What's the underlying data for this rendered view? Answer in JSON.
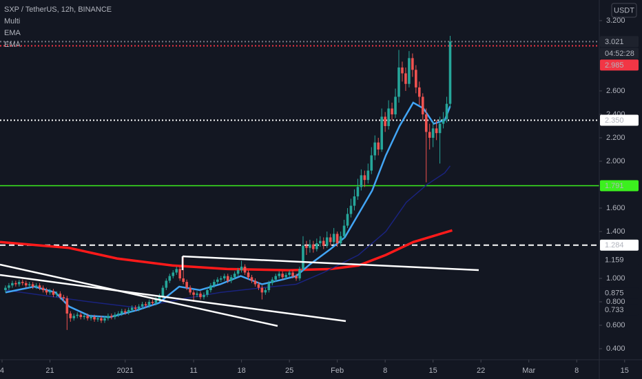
{
  "chart_data": {
    "type": "candlestick",
    "title": "SXP / TetherUS, 12h, BINANCE",
    "indicators": [
      "Multi",
      "EMA",
      "EMA"
    ],
    "currency": "USDT",
    "countdown": "04:52:28",
    "up_color": "#26a69a",
    "down_color": "#ef5350",
    "grid": false,
    "xlim": [
      -0.3,
      87.3
    ],
    "ylim": [
      0.306,
      3.376
    ],
    "xticks": [
      {
        "value": 0,
        "label": "4"
      },
      {
        "value": 7,
        "label": "21"
      },
      {
        "value": 18,
        "label": "2021"
      },
      {
        "value": 28,
        "label": "11"
      },
      {
        "value": 35,
        "label": "18"
      },
      {
        "value": 42,
        "label": "25"
      },
      {
        "value": 49,
        "label": "Feb"
      },
      {
        "value": 56,
        "label": "8"
      },
      {
        "value": 63,
        "label": "15"
      },
      {
        "value": 70,
        "label": "22"
      },
      {
        "value": 77,
        "label": "Mar"
      },
      {
        "value": 84,
        "label": "8"
      },
      {
        "value": 91,
        "label": "15"
      }
    ],
    "yticks": [
      {
        "value": 3.2,
        "label": "3.200"
      },
      {
        "value": 2.6,
        "label": "2.600"
      },
      {
        "value": 2.4,
        "label": "2.400"
      },
      {
        "value": 2.2,
        "label": "2.200"
      },
      {
        "value": 2,
        "label": "2.000"
      },
      {
        "value": 1.6,
        "label": "1.600"
      },
      {
        "value": 1.4,
        "label": "1.400"
      },
      {
        "value": 1,
        "label": "1.000"
      },
      {
        "value": 0.8,
        "label": "0.800"
      },
      {
        "value": 0.6,
        "label": "0.600"
      },
      {
        "value": 0.4,
        "label": "0.400"
      }
    ],
    "x": [
      0.5,
      1,
      1.5,
      2,
      2.5,
      3,
      3.5,
      4,
      4.5,
      5,
      5.5,
      6,
      6.5,
      7,
      7.5,
      8,
      8.5,
      9,
      9.5,
      10,
      10.5,
      11,
      11.5,
      12,
      12.5,
      13,
      13.5,
      14,
      14.5,
      15,
      15.5,
      16,
      16.5,
      17,
      17.5,
      18,
      18.5,
      19,
      19.5,
      20,
      20.5,
      21,
      21.5,
      22,
      22.5,
      23,
      23.5,
      24,
      24.5,
      25,
      25.5,
      26,
      26.5,
      27,
      27.5,
      28,
      28.5,
      29,
      29.5,
      30,
      30.5,
      31,
      31.5,
      32,
      32.5,
      33,
      33.5,
      34,
      34.5,
      35,
      35.5,
      36,
      36.5,
      37,
      37.5,
      38,
      38.5,
      39,
      39.5,
      40,
      40.5,
      41,
      41.5,
      42,
      42.5,
      43,
      43.5,
      44,
      44.5,
      45,
      45.5,
      46,
      46.5,
      47,
      47.5,
      48,
      48.5,
      49,
      49.5,
      50,
      50.5,
      51,
      51.5,
      52,
      52.5,
      53,
      53.5,
      54,
      54.5,
      55,
      55.5,
      56,
      56.5,
      57,
      57.5,
      58,
      58.5,
      59,
      59.5,
      60,
      60.5,
      61,
      61.5,
      62,
      62.5,
      63,
      63.5,
      64,
      64.5,
      65,
      65.5
    ],
    "open": [
      0.9,
      0.92,
      0.94,
      0.96,
      0.95,
      0.97,
      0.96,
      0.94,
      0.95,
      0.93,
      0.94,
      0.92,
      0.9,
      0.88,
      0.89,
      0.86,
      0.87,
      0.84,
      0.83,
      0.7,
      0.66,
      0.68,
      0.69,
      0.67,
      0.68,
      0.66,
      0.67,
      0.65,
      0.66,
      0.64,
      0.66,
      0.68,
      0.67,
      0.69,
      0.7,
      0.72,
      0.71,
      0.73,
      0.75,
      0.74,
      0.76,
      0.78,
      0.77,
      0.8,
      0.79,
      0.82,
      0.85,
      0.92,
      0.98,
      1.02,
      1.05,
      1.08,
      1.0,
      0.97,
      0.92,
      0.88,
      0.86,
      0.87,
      0.84,
      0.86,
      0.9,
      0.94,
      0.97,
      0.99,
      1.0,
      1.02,
      0.98,
      1.01,
      1.04,
      1.07,
      1.1,
      1.05,
      1.01,
      0.98,
      0.95,
      0.92,
      0.88,
      0.9,
      0.96,
      0.99,
      1.02,
      1.04,
      1.01,
      1.03,
      1.05,
      1.02,
      1.0,
      1.08,
      1.28,
      1.26,
      1.29,
      1.25,
      1.3,
      1.32,
      1.28,
      1.35,
      1.31,
      1.38,
      1.3,
      1.36,
      1.45,
      1.55,
      1.62,
      1.7,
      1.78,
      1.88,
      1.84,
      1.92,
      2.05,
      2.16,
      2.1,
      2.38,
      2.3,
      2.45,
      2.4,
      2.55,
      2.8,
      2.75,
      2.66,
      2.88,
      2.78,
      2.63,
      2.55,
      2.4,
      2.25,
      2.2,
      2.28,
      2.24,
      2.32,
      2.36,
      2.49
    ],
    "high": [
      0.94,
      0.96,
      0.98,
      0.98,
      0.99,
      0.99,
      0.98,
      0.97,
      0.97,
      0.96,
      0.96,
      0.94,
      0.92,
      0.91,
      0.91,
      0.89,
      0.89,
      0.86,
      0.85,
      0.72,
      0.7,
      0.71,
      0.71,
      0.7,
      0.7,
      0.69,
      0.69,
      0.68,
      0.68,
      0.68,
      0.7,
      0.7,
      0.71,
      0.72,
      0.74,
      0.74,
      0.75,
      0.77,
      0.77,
      0.78,
      0.8,
      0.8,
      0.82,
      0.82,
      0.84,
      0.87,
      0.94,
      1.0,
      1.04,
      1.07,
      1.1,
      1.1,
      1.19,
      0.99,
      0.94,
      0.9,
      0.89,
      0.89,
      0.88,
      0.92,
      0.96,
      0.99,
      1.01,
      1.02,
      1.04,
      1.04,
      1.03,
      1.06,
      1.09,
      1.15,
      1.12,
      1.07,
      1.03,
      1.0,
      0.97,
      0.94,
      0.92,
      0.98,
      1.01,
      1.04,
      1.06,
      1.06,
      1.05,
      1.07,
      1.07,
      1.04,
      1.1,
      1.36,
      1.32,
      1.33,
      1.32,
      1.34,
      1.36,
      1.35,
      1.4,
      1.38,
      1.43,
      1.4,
      1.4,
      1.5,
      1.6,
      1.68,
      1.76,
      1.85,
      1.93,
      1.92,
      1.98,
      2.12,
      2.22,
      2.2,
      2.45,
      2.42,
      2.52,
      2.5,
      2.62,
      2.95,
      2.85,
      2.8,
      2.94,
      2.92,
      2.82,
      2.68,
      2.58,
      2.45,
      2.32,
      2.34,
      2.35,
      2.38,
      2.42,
      2.55,
      3.07
    ],
    "low": [
      0.88,
      0.9,
      0.92,
      0.93,
      0.93,
      0.94,
      0.92,
      0.92,
      0.91,
      0.91,
      0.9,
      0.88,
      0.86,
      0.86,
      0.84,
      0.84,
      0.82,
      0.8,
      0.56,
      0.63,
      0.64,
      0.66,
      0.65,
      0.65,
      0.64,
      0.64,
      0.63,
      0.63,
      0.62,
      0.62,
      0.64,
      0.65,
      0.65,
      0.67,
      0.68,
      0.69,
      0.69,
      0.71,
      0.72,
      0.72,
      0.74,
      0.75,
      0.75,
      0.77,
      0.77,
      0.8,
      0.83,
      0.9,
      0.96,
      1.0,
      1.03,
      0.98,
      0.95,
      0.9,
      0.86,
      0.8,
      0.84,
      0.82,
      0.82,
      0.84,
      0.88,
      0.92,
      0.95,
      0.97,
      0.98,
      0.96,
      0.96,
      0.99,
      1.02,
      1.05,
      1.03,
      0.99,
      0.96,
      0.93,
      0.9,
      0.82,
      0.86,
      0.88,
      0.94,
      0.97,
      1.0,
      0.99,
      0.99,
      1.01,
      1.0,
      0.98,
      0.98,
      1.06,
      1.2,
      1.22,
      1.22,
      1.23,
      1.27,
      1.25,
      1.26,
      1.28,
      1.29,
      1.27,
      1.28,
      1.34,
      1.43,
      1.52,
      1.58,
      1.67,
      1.75,
      1.78,
      1.81,
      1.89,
      2.01,
      2.05,
      2.08,
      2.25,
      2.27,
      2.35,
      2.37,
      2.5,
      2.68,
      2.6,
      2.63,
      2.72,
      2.58,
      2.48,
      2.35,
      1.82,
      2.1,
      2.12,
      2.18,
      1.98,
      2.28,
      2.33,
      2.46
    ],
    "close": [
      0.92,
      0.94,
      0.96,
      0.95,
      0.97,
      0.96,
      0.94,
      0.95,
      0.93,
      0.94,
      0.92,
      0.9,
      0.88,
      0.89,
      0.86,
      0.87,
      0.84,
      0.83,
      0.7,
      0.66,
      0.68,
      0.69,
      0.67,
      0.68,
      0.66,
      0.67,
      0.65,
      0.66,
      0.64,
      0.66,
      0.68,
      0.67,
      0.69,
      0.7,
      0.72,
      0.71,
      0.73,
      0.75,
      0.74,
      0.76,
      0.78,
      0.77,
      0.8,
      0.79,
      0.82,
      0.85,
      0.92,
      0.98,
      1.02,
      1.05,
      1.08,
      1.0,
      0.97,
      0.92,
      0.88,
      0.86,
      0.87,
      0.84,
      0.86,
      0.9,
      0.94,
      0.97,
      0.99,
      1.0,
      1.02,
      0.98,
      1.01,
      1.04,
      1.07,
      1.1,
      1.05,
      1.01,
      0.98,
      0.95,
      0.92,
      0.88,
      0.9,
      0.96,
      0.99,
      1.02,
      1.04,
      1.01,
      1.03,
      1.05,
      1.02,
      1.0,
      1.08,
      1.28,
      1.26,
      1.29,
      1.25,
      1.3,
      1.32,
      1.28,
      1.35,
      1.31,
      1.38,
      1.3,
      1.36,
      1.45,
      1.55,
      1.62,
      1.7,
      1.78,
      1.88,
      1.84,
      1.92,
      2.05,
      2.16,
      2.1,
      2.38,
      2.3,
      2.45,
      2.4,
      2.55,
      2.8,
      2.75,
      2.66,
      2.88,
      2.78,
      2.63,
      2.55,
      2.4,
      2.25,
      2.2,
      2.28,
      2.24,
      2.32,
      2.36,
      2.49,
      3.021
    ],
    "lines": [
      {
        "color": "#ff1a1a",
        "width": 3.5,
        "x": [
          -0.3,
          9.8,
          16.8,
          24.9,
          32.9,
          42.0,
          48.0,
          52.1,
          56.1,
          60.1,
          65.8
        ],
        "values": [
          1.31,
          1.26,
          1.17,
          1.11,
          1.08,
          1.07,
          1.08,
          1.11,
          1.2,
          1.31,
          1.41
        ]
      },
      {
        "color": "#1a237e",
        "width": 1.5,
        "x": [
          0.5,
          12.8,
          19.8,
          25.9,
          31.9,
          38.0,
          43.0,
          47.0,
          52.1,
          56.1,
          59.1,
          62.1,
          64.7,
          65.5
        ],
        "values": [
          0.9,
          0.8,
          0.75,
          0.82,
          0.88,
          0.92,
          0.95,
          1.05,
          1.2,
          1.4,
          1.65,
          1.8,
          1.9,
          1.96
        ]
      },
      {
        "color": "#42a5f5",
        "width": 2.5,
        "x": [
          0.5,
          4.7,
          7.8,
          9.8,
          12.8,
          15.8,
          19.8,
          22.9,
          25.9,
          28.9,
          31.9,
          34.9,
          38.0,
          41.0,
          43.0,
          45.0,
          48.0,
          50.1,
          52.1,
          54.1,
          56.1,
          58.1,
          60.1,
          61.6,
          63.1,
          64.7,
          65.5
        ],
        "values": [
          0.88,
          0.93,
          0.88,
          0.76,
          0.68,
          0.67,
          0.73,
          0.79,
          0.93,
          0.9,
          0.95,
          1.02,
          0.95,
          0.99,
          1.02,
          1.12,
          1.25,
          1.35,
          1.55,
          1.75,
          2.05,
          2.3,
          2.5,
          2.45,
          2.32,
          2.35,
          2.47
        ]
      }
    ],
    "price_labels": [
      {
        "value": 3.021,
        "label": "3.021",
        "bg": "#1e222d",
        "text_color": "#d1d4dc",
        "line": "dotted",
        "line_color": "#787b86"
      },
      {
        "value": 2.985,
        "label": "2.985",
        "bg": "#f23645",
        "text_color": "#ffffff",
        "line": "dotted",
        "line_color": "#f23645"
      },
      {
        "value": 2.35,
        "label": "2.350",
        "bg": "#ffffff",
        "text_color": "#000000",
        "line": "dotted",
        "line_color": "#ffffff"
      },
      {
        "value": 1.791,
        "label": "1.791",
        "bg": "#3cf01e",
        "text_color": "#000000",
        "line": "solid",
        "line_color": "#3cf01e"
      },
      {
        "value": 1.284,
        "label": "1.284",
        "bg": "#ffffff",
        "text_color": "#000000",
        "line": "dashed",
        "line_color": "#ffffff"
      },
      {
        "value": 1.159,
        "label": "1.159",
        "bg": "#131722",
        "text_color": "#ffffff"
      },
      {
        "value": 0.875,
        "label": "0.875",
        "bg": "#131722",
        "text_color": "#ffffff"
      },
      {
        "value": 0.733,
        "label": "0.733",
        "bg": "#131722",
        "text_color": "#ffffff"
      }
    ]
  }
}
